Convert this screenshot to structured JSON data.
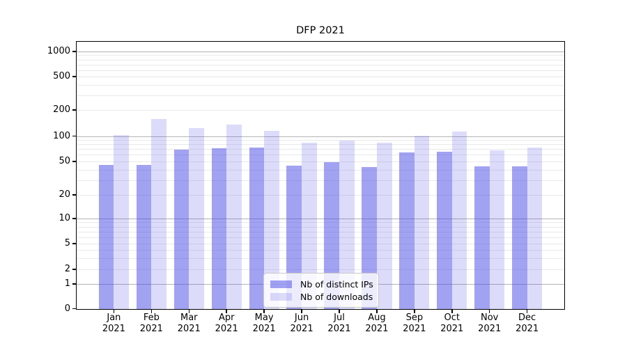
{
  "chart_data": {
    "type": "bar",
    "title": "DFP 2021",
    "y_scale": "symlog",
    "y_ticks": [
      0,
      1,
      2,
      5,
      10,
      20,
      50,
      100,
      200,
      500,
      1000
    ],
    "ylim": [
      0,
      1000
    ],
    "grid": "both",
    "legend_position": "lower-center-inside",
    "x_year": "2021",
    "categories": [
      "Jan",
      "Feb",
      "Mar",
      "Apr",
      "May",
      "Jun",
      "Jul",
      "Aug",
      "Sep",
      "Oct",
      "Nov",
      "Dec"
    ],
    "series": [
      {
        "name": "Nb of distinct IPs",
        "color": "rgba(70,70,230,0.5)",
        "values": [
          46,
          46,
          70,
          73,
          74,
          45,
          50,
          43,
          65,
          66,
          44,
          44
        ]
      },
      {
        "name": "Nb of downloads",
        "color": "rgba(70,70,230,0.19)",
        "values": [
          103,
          158,
          126,
          138,
          117,
          85,
          89,
          85,
          101,
          113,
          68,
          74
        ]
      }
    ]
  },
  "colors": {
    "major_grid": "#b3b3b3",
    "minor_grid": "#e9e9e9",
    "spine": "#000000",
    "legend_border": "#c9c9c9"
  }
}
